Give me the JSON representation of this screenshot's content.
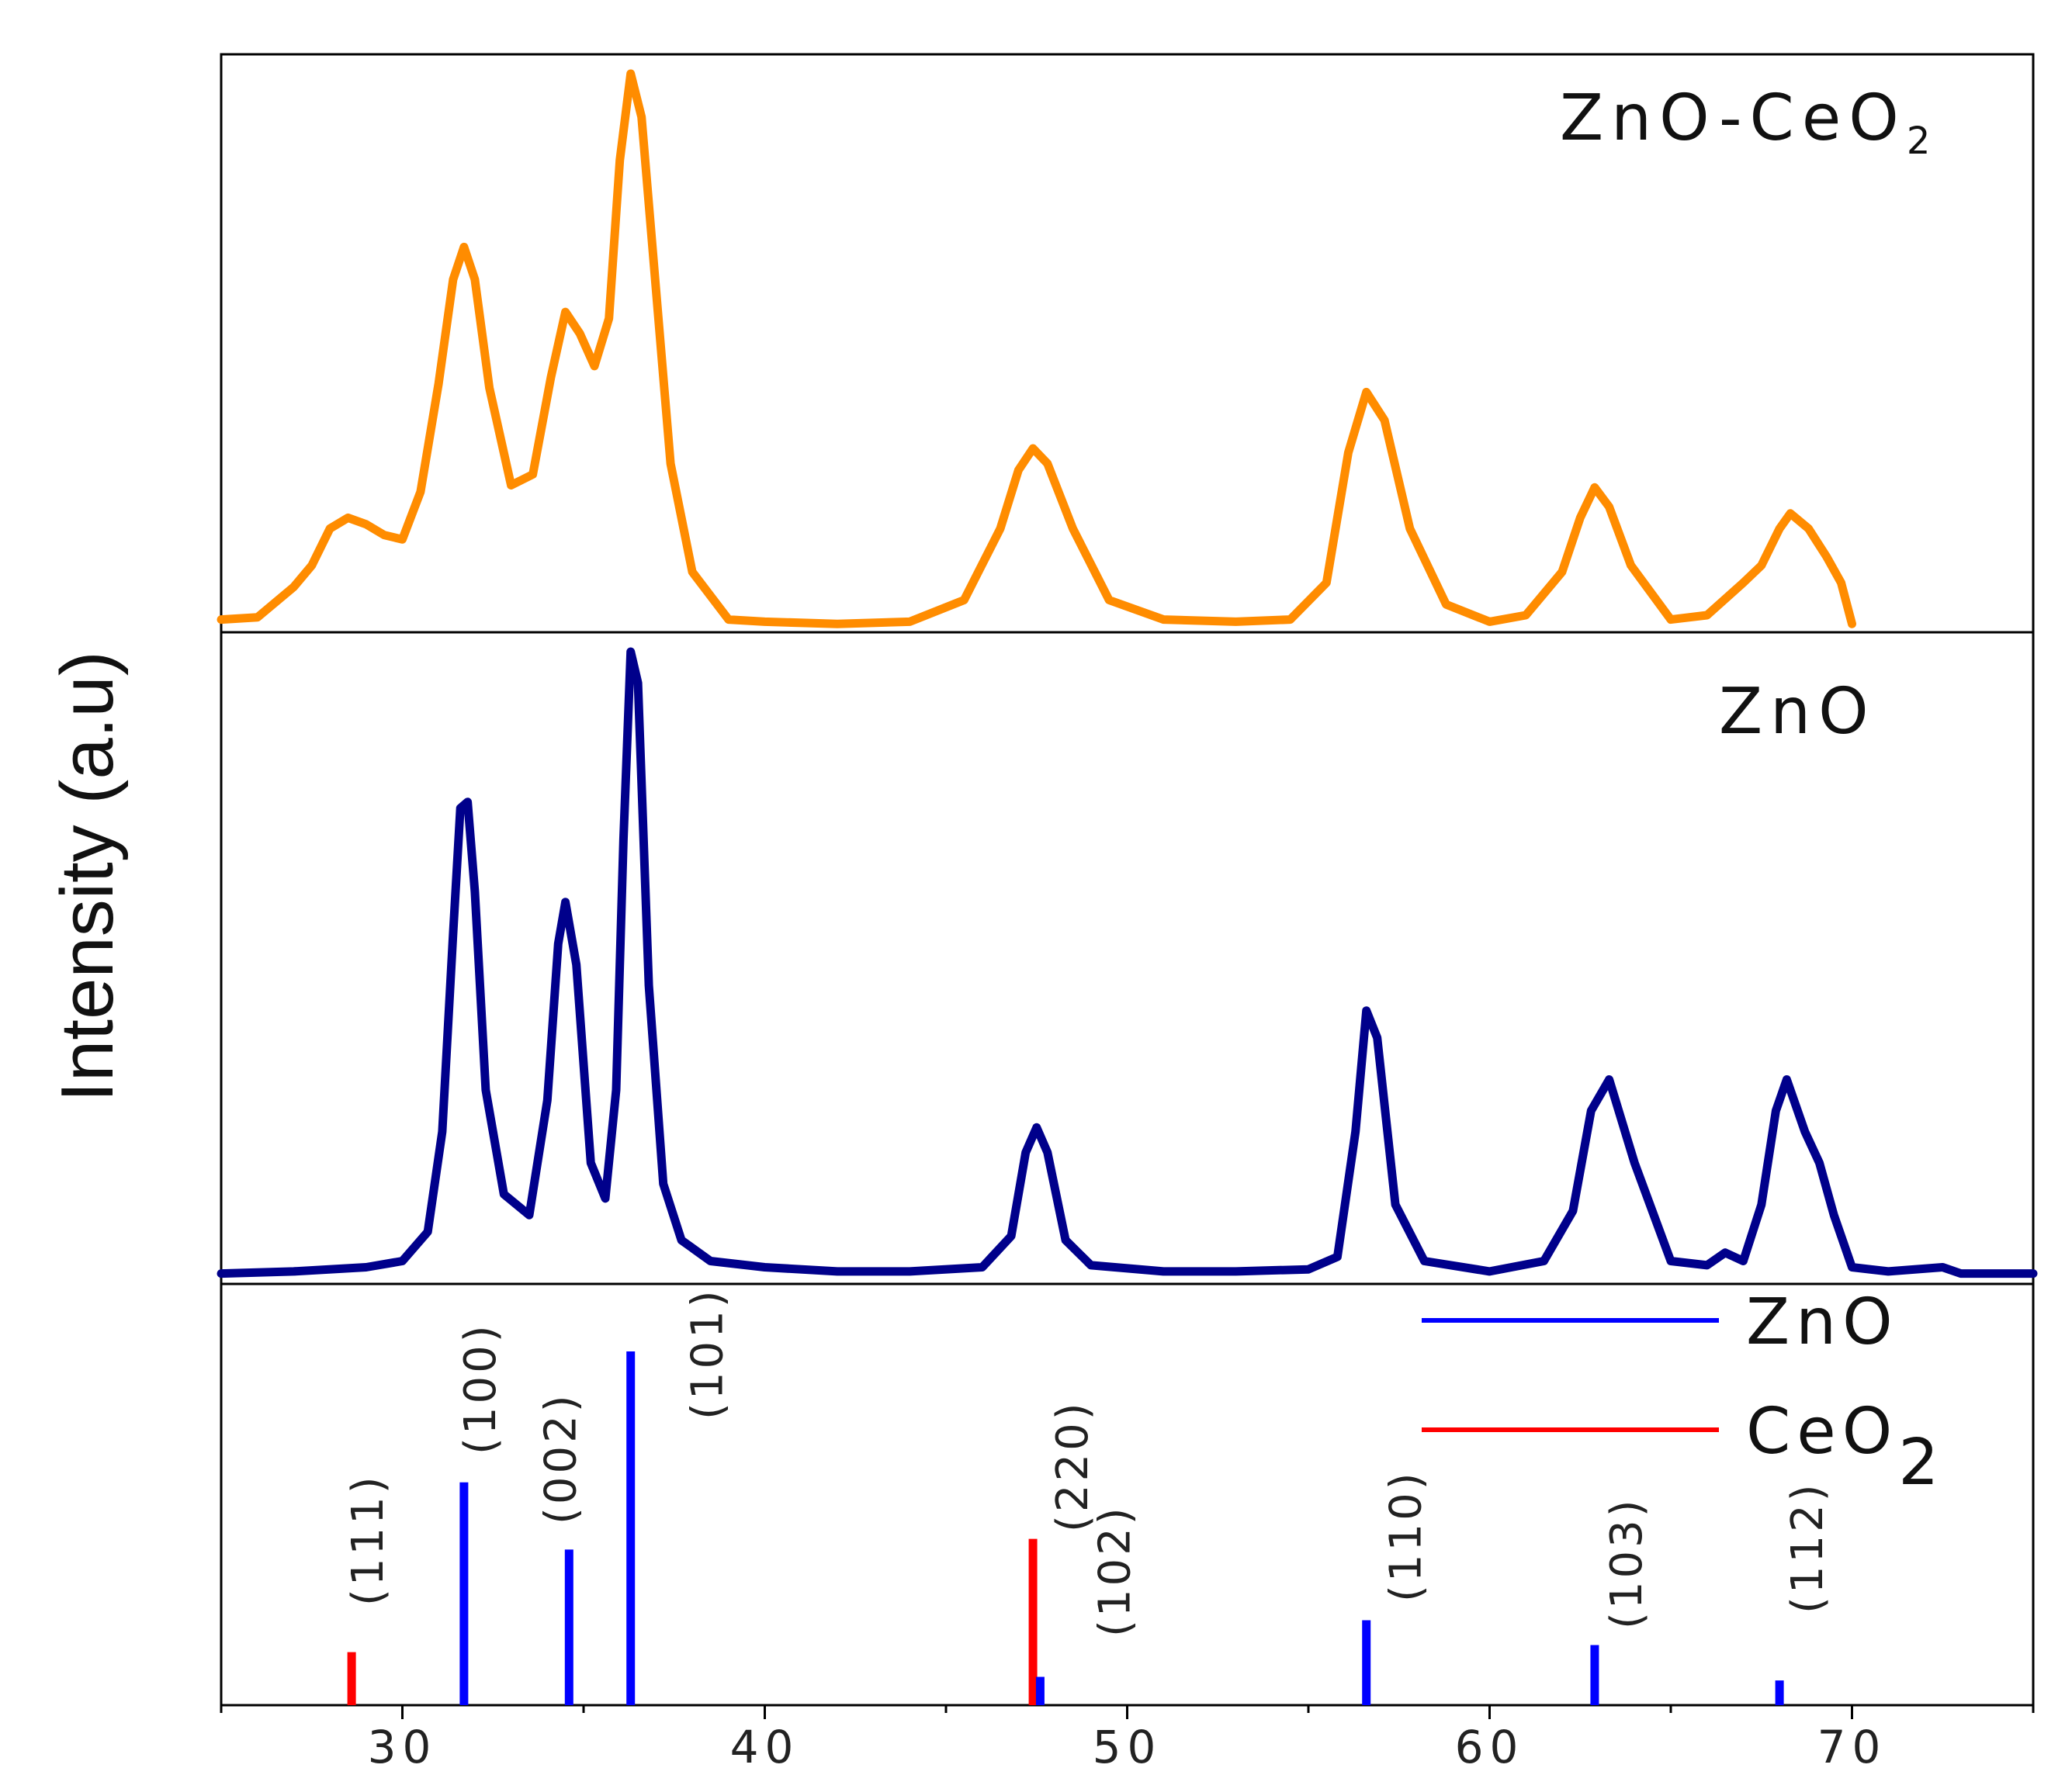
{
  "chart_data": {
    "type": "line",
    "ylabel": "Intensity (a.u)",
    "xlabel": "",
    "xlim": [
      25,
      75
    ],
    "x_ticks": [
      "30",
      "40",
      "50",
      "60",
      "70"
    ],
    "x_tick_values": [
      30,
      40,
      50,
      60,
      70
    ],
    "grid": false,
    "panels": [
      {
        "label": "ZnO-CeO",
        "label_subscript": "2",
        "color": "#ff8c00",
        "series": [
          {
            "name": "ZnO-CeO2",
            "x": [
              25,
              26,
              27,
              27.5,
              28,
              28.5,
              29,
              29.5,
              30,
              30.5,
              31,
              31.4,
              31.7,
              32,
              32.4,
              33,
              33.6,
              34.1,
              34.5,
              34.9,
              35.3,
              35.7,
              36.0,
              36.3,
              36.6,
              37.0,
              37.4,
              38,
              39,
              40,
              42,
              44,
              45.5,
              46.5,
              47,
              47.4,
              47.8,
              48.5,
              49.5,
              51,
              53,
              54.5,
              55.5,
              56.1,
              56.6,
              57.1,
              57.8,
              58.8,
              60,
              61,
              62,
              62.5,
              62.9,
              63.3,
              63.9,
              65,
              66,
              67,
              67.5,
              68,
              68.3,
              68.8,
              69.3,
              69.7,
              70
            ],
            "y": [
              3,
              4,
              18,
              28,
              45,
              50,
              47,
              42,
              40,
              62,
              112,
              160,
              175,
              160,
              110,
              65,
              70,
              115,
              145,
              135,
              120,
              142,
              215,
              255,
              235,
              155,
              75,
              25,
              3,
              2,
              1,
              2,
              12,
              45,
              72,
              82,
              75,
              45,
              12,
              3,
              2,
              3,
              20,
              80,
              108,
              95,
              45,
              10,
              2,
              5,
              25,
              50,
              64,
              55,
              28,
              3,
              5,
              20,
              28,
              45,
              52,
              45,
              32,
              20,
              1
            ]
          }
        ]
      },
      {
        "label": "ZnO",
        "color": "#00008b",
        "series": [
          {
            "name": "ZnO",
            "x": [
              25,
              27,
              29,
              30,
              30.7,
              31.1,
              31.4,
              31.6,
              31.8,
              32.0,
              32.3,
              32.8,
              33.5,
              34.0,
              34.3,
              34.5,
              34.8,
              35.2,
              35.6,
              35.9,
              36.1,
              36.3,
              36.5,
              36.8,
              37.2,
              37.7,
              38.5,
              40,
              42,
              44,
              46,
              46.8,
              47.2,
              47.5,
              47.8,
              48.3,
              49,
              51,
              53,
              55,
              55.8,
              56.3,
              56.6,
              56.9,
              57.4,
              58.2,
              60,
              61.5,
              62.3,
              62.8,
              63.3,
              64,
              65,
              66,
              66.5,
              67,
              67.5,
              67.9,
              68.2,
              68.7,
              69.1,
              69.5,
              70,
              71,
              72.5,
              73,
              75
            ],
            "y": [
              2,
              3,
              5,
              8,
              22,
              70,
              165,
              225,
              228,
              185,
              90,
              40,
              30,
              85,
              160,
              180,
              150,
              55,
              38,
              90,
              210,
              300,
              285,
              140,
              45,
              18,
              8,
              5,
              3,
              3,
              5,
              20,
              60,
              72,
              60,
              18,
              6,
              3,
              3,
              4,
              10,
              70,
              128,
              115,
              35,
              8,
              3,
              8,
              32,
              80,
              95,
              55,
              8,
              6,
              12,
              8,
              35,
              80,
              95,
              70,
              55,
              30,
              5,
              3,
              5,
              2,
              2
            ]
          }
        ]
      },
      {
        "type": "stick",
        "legend": [
          {
            "label": "ZnO",
            "color": "#0000ff"
          },
          {
            "label": "CeO",
            "label_subscript": "2",
            "color": "#ff0000"
          }
        ],
        "sticks": [
          {
            "x": 28.6,
            "height": 0.15,
            "phase": "CeO2",
            "hkl": "(111)",
            "color": "#ff0000"
          },
          {
            "x": 31.7,
            "height": 0.63,
            "phase": "ZnO",
            "hkl": "(100)",
            "color": "#0000ff"
          },
          {
            "x": 34.6,
            "height": 0.44,
            "phase": "ZnO",
            "hkl": "(002)",
            "color": "#0000ff"
          },
          {
            "x": 36.3,
            "height": 1.0,
            "phase": "ZnO",
            "hkl": "(101)",
            "color": "#0000ff"
          },
          {
            "x": 47.4,
            "height": 0.47,
            "phase": "CeO2",
            "hkl": "(220)",
            "color": "#ff0000"
          },
          {
            "x": 47.6,
            "height": 0.08,
            "phase": "ZnO",
            "hkl": "(102)",
            "color": "#0000ff"
          },
          {
            "x": 56.6,
            "height": 0.24,
            "phase": "ZnO",
            "hkl": "(110)",
            "color": "#0000ff"
          },
          {
            "x": 62.9,
            "height": 0.17,
            "phase": "ZnO",
            "hkl": "(103)",
            "color": "#0000ff"
          },
          {
            "x": 68.0,
            "height": 0.07,
            "phase": "ZnO",
            "hkl": "(112)",
            "color": "#0000ff"
          }
        ]
      }
    ]
  }
}
